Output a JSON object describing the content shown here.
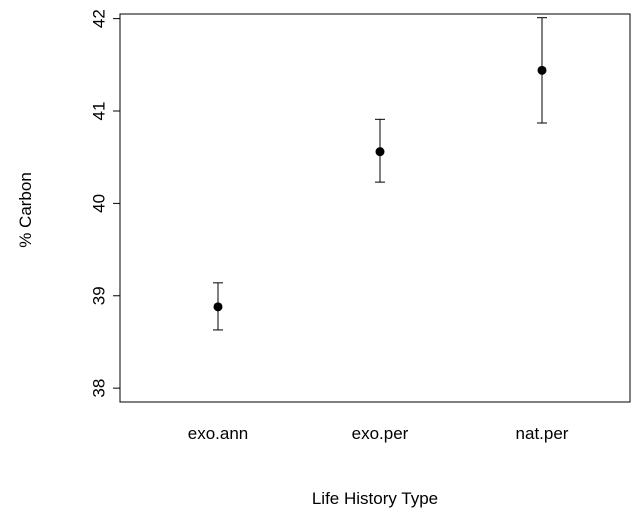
{
  "chart_data": {
    "type": "scatter",
    "title": "",
    "xlabel": "Life History Type",
    "ylabel": "% Carbon",
    "categories": [
      "exo.ann",
      "exo.per",
      "nat.per"
    ],
    "points": [
      {
        "category": "exo.ann",
        "mean": 38.88,
        "lower": 38.63,
        "upper": 39.14
      },
      {
        "category": "exo.per",
        "mean": 40.56,
        "lower": 40.23,
        "upper": 40.91
      },
      {
        "category": "nat.per",
        "mean": 41.44,
        "lower": 40.87,
        "upper": 42.01
      }
    ],
    "yticks": [
      "38",
      "39",
      "40",
      "41",
      "42"
    ],
    "ylim": [
      37.85,
      42.05
    ],
    "grid": false,
    "legend": "none",
    "colors": {
      "marker": "#000000",
      "axis": "#000000"
    }
  }
}
